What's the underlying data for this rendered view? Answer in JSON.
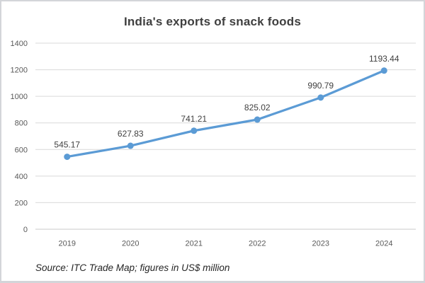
{
  "chart_data": {
    "type": "line",
    "title": "India's exports of snack foods",
    "categories": [
      "2019",
      "2020",
      "2021",
      "2022",
      "2023",
      "2024"
    ],
    "values": [
      545.17,
      627.83,
      741.21,
      825.02,
      990.79,
      1193.44
    ],
    "data_labels": [
      "545.17",
      "627.83",
      "741.21",
      "825.02",
      "990.79",
      "1193.44"
    ],
    "ylim": [
      0,
      1400
    ],
    "y_ticks": [
      0,
      200,
      400,
      600,
      800,
      1000,
      1200,
      1400
    ],
    "xlabel": "",
    "ylabel": "",
    "grid": true,
    "legend_position": "none",
    "source_note": "Source: ITC Trade Map; figures in US$ million"
  },
  "style": {
    "line_color": "#5B9BD5",
    "marker_color": "#5B9BD5",
    "grid_color": "#D9D9D9",
    "axis_line_color": "#C8C8C8",
    "axis_label_color": "#595959",
    "data_label_color": "#404040",
    "title_color": "#3F3F3F",
    "source_color": "#262626",
    "background": "#FFFFFF",
    "border_color": "#D3D5D9"
  }
}
